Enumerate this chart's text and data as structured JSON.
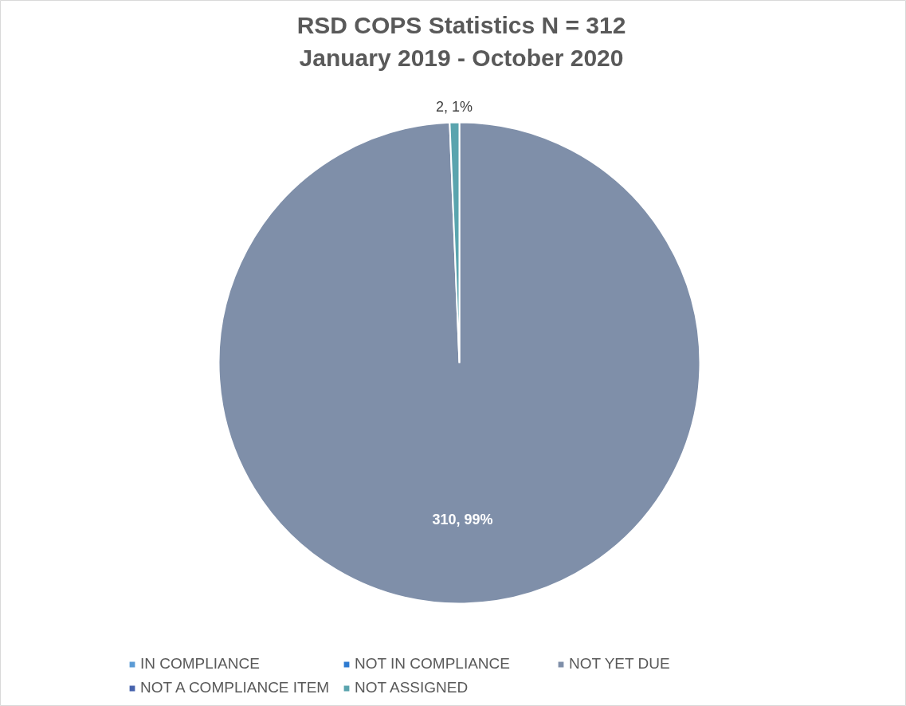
{
  "chart_data": {
    "type": "pie",
    "title": "RSD COPS Statistics N = 312\nJanuary 2019 - October 2020",
    "categories": [
      "IN COMPLIANCE",
      "NOT IN COMPLIANCE",
      "NOT YET DUE",
      "NOT A COMPLIANCE ITEM",
      "NOT ASSIGNED"
    ],
    "values": [
      0,
      0,
      310,
      0,
      2
    ],
    "colors": [
      "#5b9bd5",
      "#2e7bd1",
      "#7f8fa9",
      "#4763ad",
      "#5aa4ae"
    ],
    "value_labels": [
      null,
      null,
      "310, 99%",
      null,
      "2, 1%"
    ],
    "legend": "bottom"
  }
}
